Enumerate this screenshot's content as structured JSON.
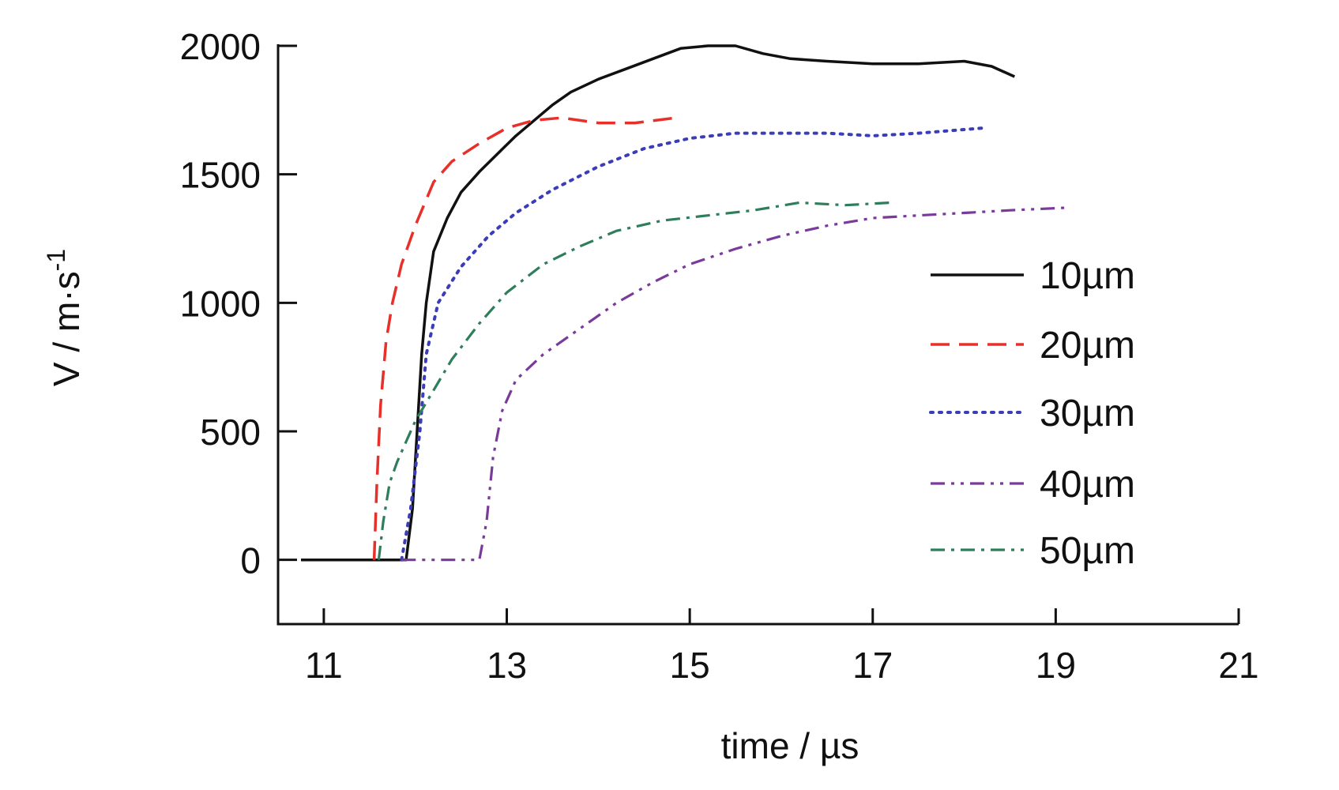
{
  "chart_data": {
    "type": "line",
    "xlabel": "time / µs",
    "ylabel_main": "V / m·s",
    "ylabel_sup": "-1",
    "xlim": [
      10.5,
      21
    ],
    "ylim": [
      -250,
      2000
    ],
    "xticks": [
      11,
      13,
      15,
      17,
      19,
      21
    ],
    "yticks": [
      0,
      500,
      1000,
      1500,
      2000
    ],
    "grid": false,
    "legend_position": "right-middle",
    "series": [
      {
        "name": "10µm",
        "color": "#111111",
        "dash": "solid",
        "x": [
          10.75,
          11.5,
          11.9,
          11.97,
          12.02,
          12.07,
          12.12,
          12.2,
          12.35,
          12.5,
          12.7,
          12.9,
          13.1,
          13.3,
          13.5,
          13.7,
          14.0,
          14.3,
          14.6,
          14.9,
          15.2,
          15.5,
          15.8,
          16.1,
          16.5,
          17.0,
          17.5,
          18.0,
          18.3,
          18.55
        ],
        "y": [
          0,
          0,
          0,
          200,
          500,
          800,
          1000,
          1200,
          1330,
          1430,
          1510,
          1580,
          1650,
          1710,
          1770,
          1820,
          1870,
          1910,
          1950,
          1990,
          2000,
          2000,
          1970,
          1950,
          1940,
          1930,
          1930,
          1940,
          1920,
          1880
        ]
      },
      {
        "name": "20µm",
        "color": "#e8302a",
        "dash": "dashed",
        "x": [
          11.55,
          11.58,
          11.62,
          11.68,
          11.75,
          11.85,
          12.0,
          12.2,
          12.4,
          12.7,
          13.0,
          13.3,
          13.6,
          14.0,
          14.4,
          14.85
        ],
        "y": [
          0,
          300,
          600,
          850,
          1000,
          1150,
          1300,
          1470,
          1550,
          1620,
          1680,
          1710,
          1720,
          1700,
          1700,
          1720
        ]
      },
      {
        "name": "30µm",
        "color": "#3b3db8",
        "dash": "dotted",
        "x": [
          11.85,
          11.95,
          12.05,
          12.12,
          12.25,
          12.5,
          12.8,
          13.1,
          13.5,
          14.0,
          14.5,
          15.0,
          15.5,
          16.0,
          16.5,
          17.0,
          17.5,
          18.2
        ],
        "y": [
          0,
          200,
          500,
          800,
          1000,
          1140,
          1260,
          1350,
          1440,
          1530,
          1600,
          1640,
          1660,
          1660,
          1660,
          1650,
          1660,
          1680
        ]
      },
      {
        "name": "40µm",
        "color": "#7a3a9a",
        "dash": "dashdotdot",
        "x": [
          11.85,
          12.7,
          12.78,
          12.85,
          12.95,
          13.1,
          13.4,
          13.8,
          14.2,
          14.6,
          15.0,
          15.5,
          16.0,
          16.5,
          17.0,
          17.5,
          18.0,
          18.5,
          19.1
        ],
        "y": [
          0,
          0,
          150,
          400,
          580,
          700,
          800,
          900,
          1000,
          1080,
          1150,
          1210,
          1260,
          1300,
          1330,
          1340,
          1350,
          1360,
          1370
        ]
      },
      {
        "name": "50µm",
        "color": "#2e7d5b",
        "dash": "dashdot",
        "x": [
          11.6,
          11.65,
          11.72,
          11.8,
          11.9,
          12.0,
          12.2,
          12.4,
          12.7,
          13.0,
          13.4,
          13.8,
          14.2,
          14.7,
          15.2,
          15.7,
          16.2,
          16.7,
          17.2
        ],
        "y": [
          0,
          150,
          300,
          380,
          460,
          540,
          660,
          780,
          920,
          1040,
          1150,
          1220,
          1280,
          1320,
          1340,
          1360,
          1390,
          1380,
          1390
        ]
      }
    ]
  }
}
